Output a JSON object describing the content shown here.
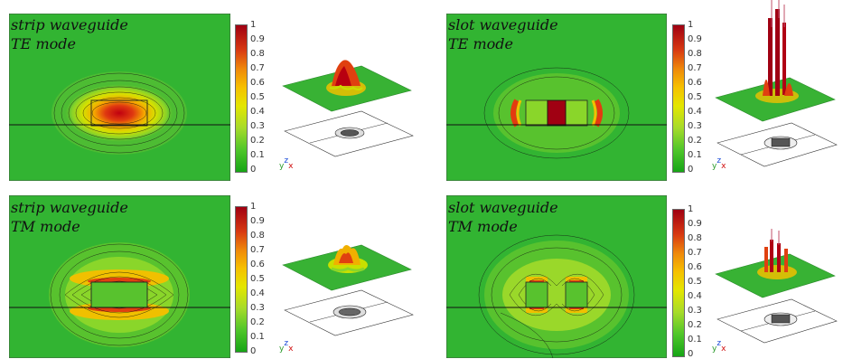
{
  "panels": [
    {
      "id": "strip-te",
      "title_line1": "strip waveguide",
      "title_line2": "TE mode"
    },
    {
      "id": "slot-te",
      "title_line1": "slot waveguide",
      "title_line2": "TE mode"
    },
    {
      "id": "strip-tm",
      "title_line1": "strip waveguide",
      "title_line2": "TM mode"
    },
    {
      "id": "slot-tm",
      "title_line1": "slot waveguide",
      "title_line2": "TM mode"
    }
  ],
  "colorbar_ticks": [
    "1",
    "0.9",
    "0.8",
    "0.7",
    "0.6",
    "0.5",
    "0.4",
    "0.3",
    "0.2",
    "0.1",
    "0"
  ],
  "axis_triad": {
    "y": "y",
    "z": "z",
    "x": "x"
  },
  "colors": {
    "background_field": "#32b432",
    "peak": "#a00012"
  }
}
